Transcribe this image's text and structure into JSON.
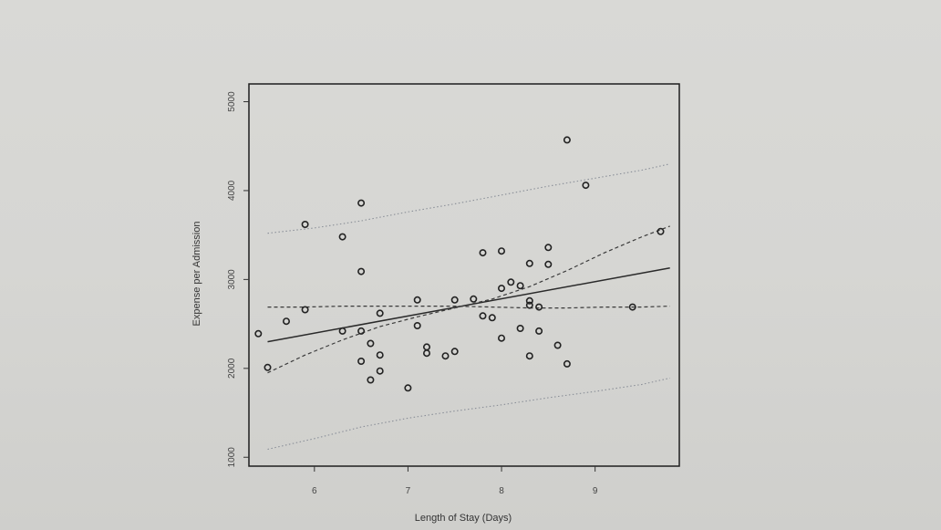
{
  "chart_data": {
    "type": "scatter",
    "title": "",
    "xlabel": "Length of Stay (Days)",
    "ylabel": "Expense per Admission",
    "xlim": [
      5.3,
      9.9
    ],
    "ylim": [
      900,
      5200
    ],
    "x_ticks": [
      6,
      7,
      8,
      9
    ],
    "y_ticks": [
      1000,
      2000,
      3000,
      4000,
      5000
    ],
    "grid": false,
    "colors": {
      "points": "#222222",
      "fit": "#2a2a2a",
      "confidence": "#3a3a3a",
      "prediction": "#8a8f98"
    },
    "series": [
      {
        "type": "scatter",
        "x": [
          5.4,
          5.5,
          5.7,
          5.9,
          5.9,
          6.3,
          6.3,
          6.5,
          6.5,
          6.5,
          6.5,
          6.6,
          6.6,
          6.7,
          6.7,
          6.7,
          7.0,
          7.1,
          7.1,
          7.2,
          7.2,
          7.4,
          7.5,
          7.5,
          7.7,
          7.8,
          7.8,
          7.9,
          8.0,
          8.0,
          8.0,
          8.1,
          8.2,
          8.2,
          8.3,
          8.3,
          8.3,
          8.3,
          8.4,
          8.4,
          8.5,
          8.5,
          8.6,
          8.7,
          8.7,
          8.9,
          9.4,
          9.7
        ],
        "y": [
          2390,
          2010,
          2530,
          3620,
          2660,
          3480,
          2420,
          3860,
          3090,
          2420,
          2080,
          2280,
          1870,
          2620,
          2150,
          1970,
          1780,
          2770,
          2480,
          2240,
          2170,
          2140,
          2770,
          2190,
          2780,
          3300,
          2590,
          2570,
          3320,
          2900,
          2340,
          2970,
          2930,
          2450,
          3180,
          2760,
          2710,
          2140,
          2690,
          2420,
          3360,
          3170,
          2260,
          4570,
          2050,
          4060,
          2690,
          3540
        ]
      },
      {
        "type": "line",
        "style": "solid",
        "x": [
          5.5,
          9.8
        ],
        "y": [
          2300,
          3130
        ]
      },
      {
        "type": "line",
        "style": "dashed",
        "x": [
          5.5,
          5.9,
          6.3,
          6.7,
          7.1,
          7.5,
          7.9,
          8.3,
          8.7,
          9.1,
          9.5,
          9.8
        ],
        "y": [
          1950,
          2150,
          2320,
          2470,
          2580,
          2680,
          2780,
          2920,
          3100,
          3300,
          3480,
          3600
        ]
      },
      {
        "type": "line",
        "style": "dashed",
        "x": [
          5.5,
          5.9,
          6.3,
          6.7,
          7.1,
          7.5,
          7.9,
          8.3,
          8.7,
          9.1,
          9.5,
          9.8
        ],
        "y": [
          2690,
          2690,
          2700,
          2700,
          2700,
          2700,
          2690,
          2680,
          2680,
          2690,
          2690,
          2700
        ]
      },
      {
        "type": "line",
        "style": "dotted",
        "x": [
          5.5,
          6.0,
          6.5,
          7.0,
          7.5,
          8.0,
          8.5,
          9.0,
          9.5,
          9.8
        ],
        "y": [
          3520,
          3580,
          3660,
          3760,
          3850,
          3950,
          4050,
          4140,
          4230,
          4300
        ]
      },
      {
        "type": "line",
        "style": "dotted",
        "x": [
          5.5,
          6.0,
          6.5,
          7.0,
          7.5,
          8.0,
          8.5,
          9.0,
          9.5,
          9.8
        ],
        "y": [
          1090,
          1210,
          1340,
          1440,
          1520,
          1590,
          1670,
          1740,
          1820,
          1890
        ]
      }
    ]
  }
}
